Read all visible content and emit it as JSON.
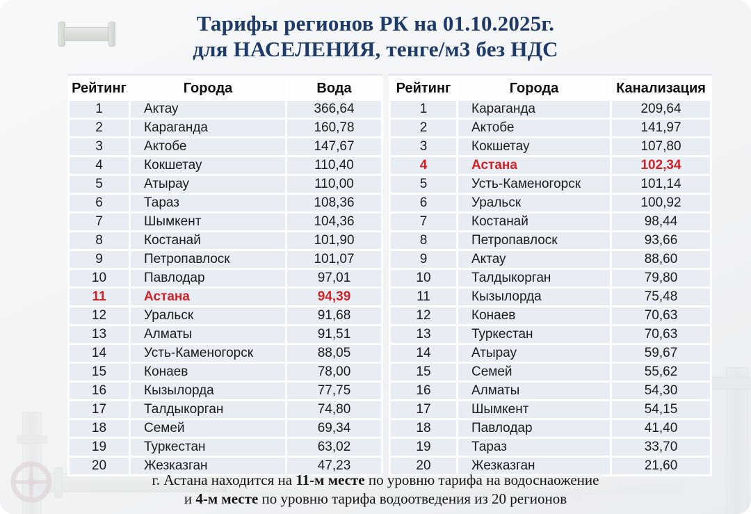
{
  "title": {
    "line1": "Тарифы регионов РК на 01.10.2025г.",
    "line2": "для НАСЕЛЕНИЯ, тенге/м3 без НДС"
  },
  "chart_data": [
    {
      "type": "table",
      "name": "water-tariff-ranking",
      "headers": [
        "Рейтинг",
        "Города",
        "Вода"
      ],
      "highlight_rank": 11,
      "highlight_city": "Астана",
      "rows": [
        [
          1,
          "Актау",
          "366,64"
        ],
        [
          2,
          "Караганда",
          "160,78"
        ],
        [
          3,
          "Актобе",
          "147,67"
        ],
        [
          4,
          "Кокшетау",
          "110,40"
        ],
        [
          5,
          "Атырау",
          "110,00"
        ],
        [
          6,
          "Тараз",
          "108,36"
        ],
        [
          7,
          "Шымкент",
          "104,36"
        ],
        [
          8,
          "Костанай",
          "101,90"
        ],
        [
          9,
          "Петропавлоск",
          "101,07"
        ],
        [
          10,
          "Павлодар",
          "97,01"
        ],
        [
          11,
          "Астана",
          "94,39"
        ],
        [
          12,
          "Уральск",
          "91,68"
        ],
        [
          13,
          "Алматы",
          "91,51"
        ],
        [
          14,
          "Усть-Каменогорск",
          "88,05"
        ],
        [
          15,
          "Конаев",
          "78,00"
        ],
        [
          16,
          "Кызылорда",
          "77,75"
        ],
        [
          17,
          "Талдыкорган",
          "74,80"
        ],
        [
          18,
          "Семей",
          "69,34"
        ],
        [
          19,
          "Туркестан",
          "63,02"
        ],
        [
          20,
          "Жезказган",
          "47,23"
        ]
      ]
    },
    {
      "type": "table",
      "name": "sewerage-tariff-ranking",
      "headers": [
        "Рейтинг",
        "Города",
        "Канализация"
      ],
      "highlight_rank": 4,
      "highlight_city": "Астана",
      "rows": [
        [
          1,
          "Караганда",
          "209,64"
        ],
        [
          2,
          "Актобе",
          "141,97"
        ],
        [
          3,
          "Кокшетау",
          "107,80"
        ],
        [
          4,
          "Астана",
          "102,34"
        ],
        [
          5,
          "Усть-Каменогорск",
          "101,14"
        ],
        [
          6,
          "Уральск",
          "100,92"
        ],
        [
          7,
          "Костанай",
          "98,44"
        ],
        [
          8,
          "Петропавлоск",
          "93,66"
        ],
        [
          9,
          "Актау",
          "88,60"
        ],
        [
          10,
          "Талдыкорган",
          "79,80"
        ],
        [
          11,
          "Кызылорда",
          "75,48"
        ],
        [
          12,
          "Конаев",
          "70,63"
        ],
        [
          13,
          "Туркестан",
          "70,63"
        ],
        [
          14,
          "Атырау",
          "59,67"
        ],
        [
          15,
          "Семей",
          "55,62"
        ],
        [
          16,
          "Алматы",
          "54,30"
        ],
        [
          17,
          "Шымкент",
          "54,15"
        ],
        [
          18,
          "Павлодар",
          "41,40"
        ],
        [
          19,
          "Тараз",
          "33,70"
        ],
        [
          20,
          "Жезказган",
          "21,60"
        ]
      ]
    }
  ],
  "footer": {
    "line1": [
      {
        "t": "г. Астана находится на ",
        "b": false
      },
      {
        "t": "11-м месте",
        "b": true
      },
      {
        "t": " по уровню тарифа на водоснаожение",
        "b": false
      }
    ],
    "line2": [
      {
        "t": "и ",
        "b": false
      },
      {
        "t": "4-м месте",
        "b": true
      },
      {
        "t": " по уровню тарифа водоотведения из 20 регионов",
        "b": false
      }
    ]
  },
  "colors": {
    "title_navy": "#1e3a66",
    "highlight_red": "#cf2328",
    "row_blue": "#e8edf4",
    "header_white": "#fcfdfe",
    "background": "#f1f3f5"
  },
  "decorations": {
    "top_left": "pipe-segment-icon",
    "bottom_left": "pipe-valve-wheel-icon",
    "bottom": "horizontal-pipe-icon",
    "bottom_right": "vertical-pipe-icon"
  }
}
